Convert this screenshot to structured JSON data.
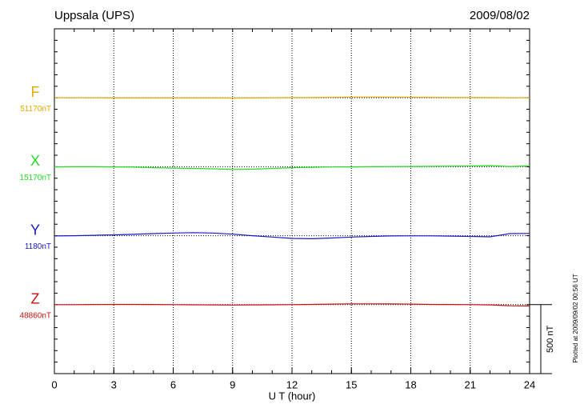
{
  "chart_data": {
    "type": "line",
    "title": "Uppsala (UPS)",
    "date": "2009/08/02",
    "xlabel": "U T (hour)",
    "note": "Plotted at 2009/09/02 00:56 UT",
    "scale": {
      "value": 500,
      "label": "500 nT"
    },
    "xlim": [
      0,
      24
    ],
    "xticks": [
      0,
      3,
      6,
      9,
      12,
      15,
      18,
      21,
      24
    ],
    "x": [
      0,
      1,
      2,
      3,
      4,
      5,
      6,
      7,
      8,
      9,
      10,
      11,
      12,
      13,
      14,
      15,
      16,
      17,
      18,
      19,
      20,
      21,
      22,
      23,
      24
    ],
    "series": [
      {
        "name": "F",
        "color": "#e8a800",
        "baseline": {
          "value": 51170,
          "label": "51170nT"
        },
        "values": [
          51170,
          51170,
          51170,
          51169,
          51169,
          51169,
          51169,
          51169,
          51169,
          51168,
          51169,
          51170,
          51171,
          51172,
          51173,
          51175,
          51175,
          51174,
          51174,
          51173,
          51172,
          51172,
          51171,
          51170,
          51170
        ]
      },
      {
        "name": "X",
        "color": "#22dd22",
        "baseline": {
          "value": 15170,
          "label": "15170nT"
        },
        "values": [
          15169,
          15170,
          15170,
          15169,
          15167,
          15163,
          15160,
          15158,
          15155,
          15150,
          15152,
          15158,
          15163,
          15166,
          15168,
          15169,
          15170,
          15171,
          15172,
          15173,
          15174,
          15175,
          15178,
          15172,
          15176
        ]
      },
      {
        "name": "Y",
        "color": "#1a1acc",
        "baseline": {
          "value": 1180,
          "label": "1180nT"
        },
        "values": [
          1178,
          1180,
          1183,
          1186,
          1190,
          1195,
          1199,
          1202,
          1199,
          1191,
          1180,
          1170,
          1160,
          1158,
          1163,
          1170,
          1175,
          1178,
          1179,
          1179,
          1177,
          1175,
          1172,
          1195,
          1196
        ]
      },
      {
        "name": "Z",
        "color": "#cc1111",
        "baseline": {
          "value": 48860,
          "label": "48860nT"
        },
        "values": [
          48860,
          48860,
          48861,
          48862,
          48862,
          48861,
          48860,
          48859,
          48858,
          48857,
          48858,
          48859,
          48860,
          48862,
          48864,
          48866,
          48866,
          48865,
          48864,
          48862,
          48861,
          48860,
          48858,
          48852,
          48850
        ]
      }
    ]
  }
}
